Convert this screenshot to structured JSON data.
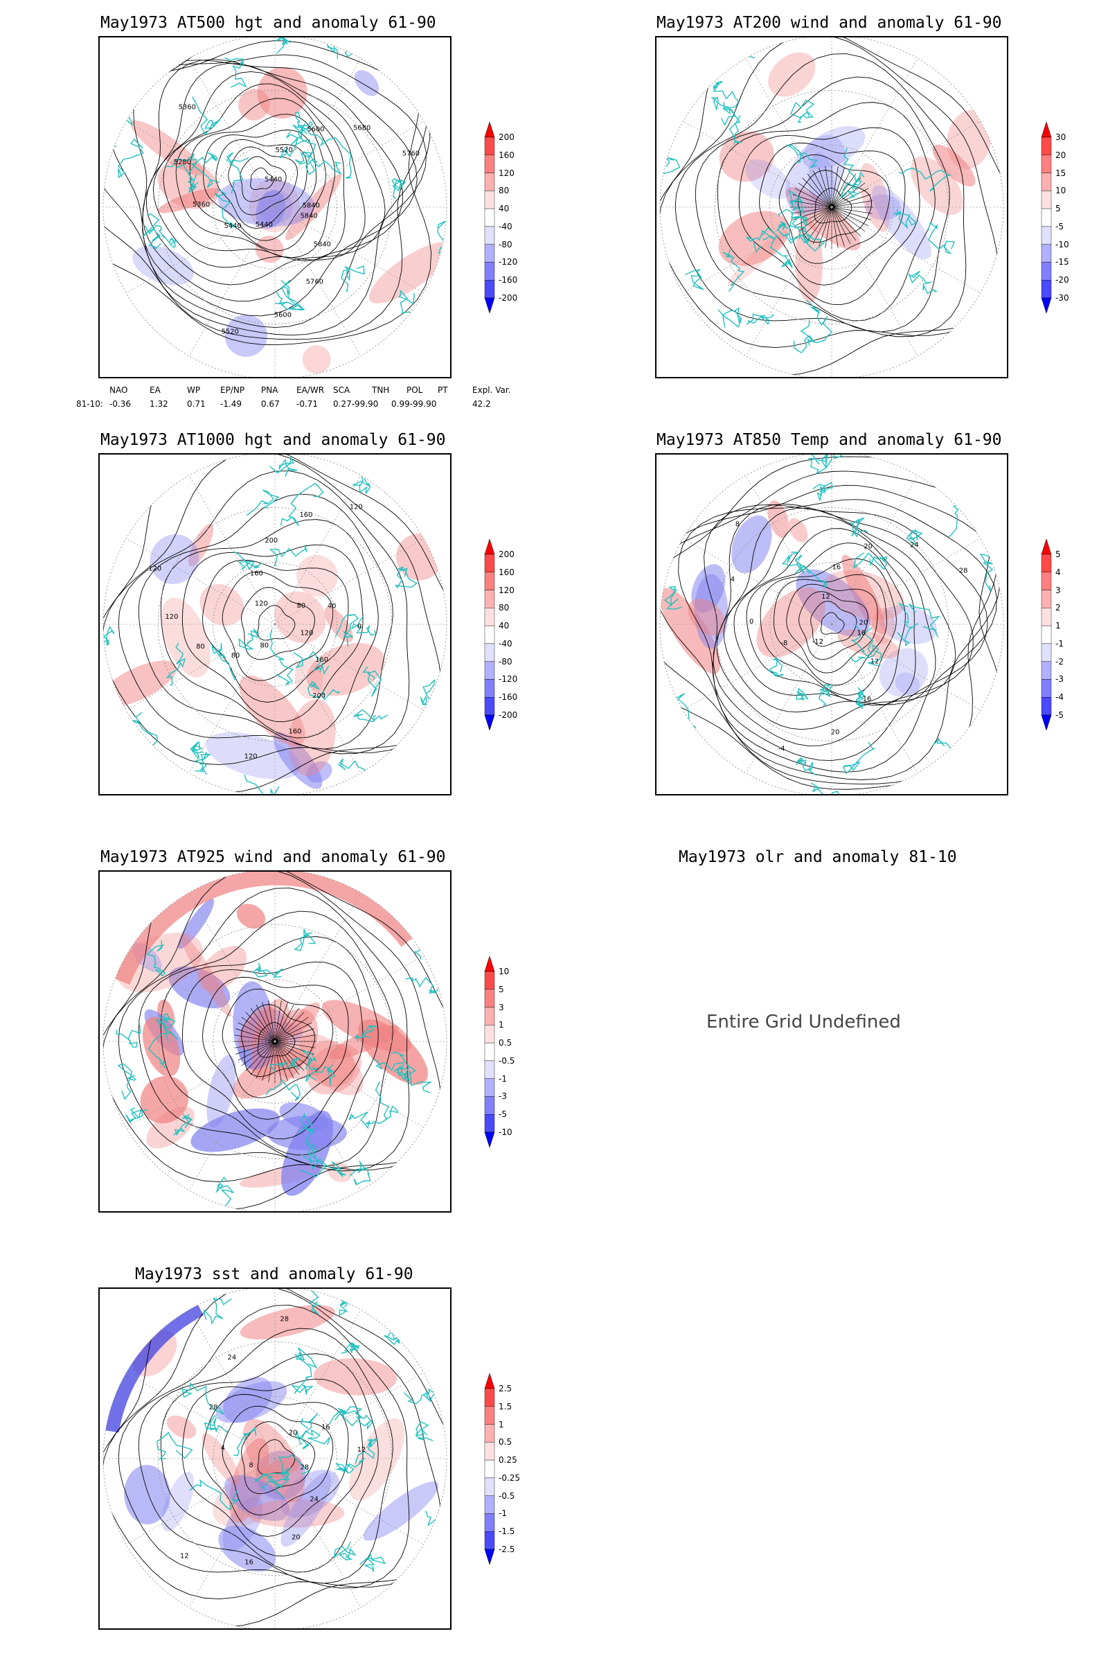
{
  "panels": {
    "p1": {
      "title": "May1973 AT500 hgt and anomaly 61-90",
      "labels": [
        "5840",
        "5840",
        "5760",
        "5600",
        "5520",
        "5440",
        "5440",
        "5360",
        "5280",
        "5360",
        "5440",
        "5520",
        "5600",
        "5680",
        "5760",
        "5840"
      ]
    },
    "p2": {
      "title": "May1973 AT200 wind and anomaly 61-90"
    },
    "p3": {
      "title": "May1973 AT1000 hgt and anomaly 61-90",
      "labels": [
        "120",
        "160",
        "200",
        "160",
        "120",
        "80",
        "80",
        "80",
        "120",
        "120",
        "120",
        "160",
        "200",
        "160",
        "120",
        "80",
        "40",
        "0"
      ]
    },
    "p4": {
      "title": "May1973 AT850 Temp and anomaly 61-90",
      "labels": [
        "16",
        "12",
        "16",
        "20",
        "-4",
        "-12",
        "-8",
        "0",
        "4",
        "8",
        "12",
        "16",
        "20",
        "24",
        "28",
        "20"
      ]
    },
    "p5": {
      "title": "May1973 AT925 wind and anomaly 61-90"
    },
    "p6": {
      "title": "May1973 olr and anomaly 81-10",
      "message": "Entire Grid Undefined"
    },
    "p7": {
      "title": "May1973 sst and anomaly 61-90",
      "labels": [
        "28",
        "24",
        "20",
        "16",
        "12",
        "8",
        "4",
        "28",
        "24",
        "28",
        "20",
        "16",
        "12"
      ]
    }
  },
  "colorbars": {
    "cb1": [
      "200",
      "160",
      "120",
      "80",
      "40",
      "-40",
      "-80",
      "-120",
      "-160",
      "-200"
    ],
    "cb2": [
      "30",
      "20",
      "15",
      "10",
      "5",
      "-5",
      "-10",
      "-15",
      "-20",
      "-30"
    ],
    "cb3": [
      "200",
      "160",
      "120",
      "80",
      "40",
      "-40",
      "-80",
      "-120",
      "-160",
      "-200"
    ],
    "cb4": [
      "5",
      "4",
      "3",
      "2",
      "1",
      "-1",
      "-2",
      "-3",
      "-4",
      "-5"
    ],
    "cb5": [
      "10",
      "5",
      "3",
      "1",
      "0.5",
      "-0.5",
      "-1",
      "-3",
      "-5",
      "-10"
    ],
    "cb7": [
      "2.5",
      "1.5",
      "1",
      "0.5",
      "0.25",
      "-0.25",
      "-0.5",
      "-1",
      "-1.5",
      "-2.5"
    ]
  },
  "colorbar_colors": [
    "#ff0000",
    "#ff4a4a",
    "#ff8080",
    "#ffb0b0",
    "#ffe0e0",
    "#ffffff",
    "#e0e0ff",
    "#b0b0ff",
    "#8080ff",
    "#4a4aff",
    "#0000ff"
  ],
  "teleconnection": {
    "headers": [
      "NAO",
      "EA",
      "WP",
      "EP/NP",
      "PNA",
      "EA/WR",
      "SCA",
      "TNH",
      "POL",
      "PT",
      "Expl. Var."
    ],
    "row_label": "81-10:",
    "values": [
      "-0.36",
      "1.32",
      "0.71",
      "-1.49",
      "0.67",
      "-0.71",
      "0.27-99.90",
      "0.99-99.90",
      "42.2"
    ]
  },
  "colors": {
    "coast": "#20c0c0",
    "contour": "#000000",
    "grid": "#999999",
    "pos": "#f08080",
    "neg": "#8080f0"
  }
}
